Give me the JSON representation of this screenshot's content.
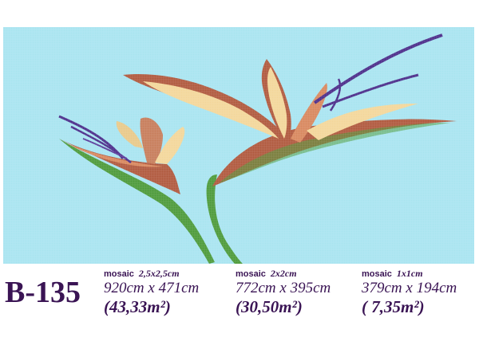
{
  "product_code": "B-135",
  "variants": [
    {
      "mosaic_label": "mosaic",
      "tile_size": "2,5x2,5cm",
      "dimensions": "920cm x 471cm",
      "area": "(43,33m²)"
    },
    {
      "mosaic_label": "mosaic",
      "tile_size": "2x2cm",
      "dimensions": "772cm x 395cm",
      "area": "(30,50m²)"
    },
    {
      "mosaic_label": "mosaic",
      "tile_size": "1x1cm",
      "dimensions": "379cm x 194cm",
      "area": "( 7,35m²)"
    }
  ],
  "colors": {
    "background": "#a8e4f0",
    "text": "#3a1454",
    "petal_brown": "#b0593e",
    "petal_cream": "#f3d79a",
    "leaf_green": "#4c9a3a",
    "flower_purple": "#4b2c8a"
  },
  "image_description_icons": [
    "bird-of-paradise-flower-icon"
  ]
}
